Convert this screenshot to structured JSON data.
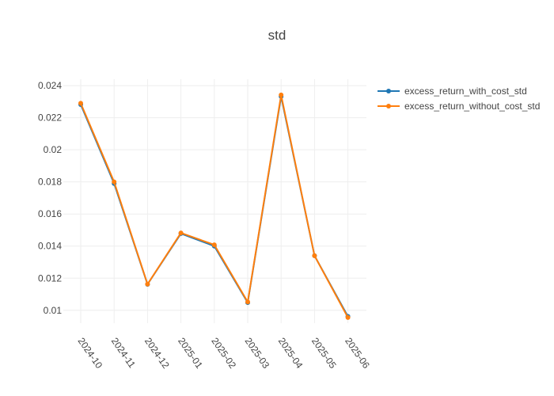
{
  "chart_data": {
    "type": "line",
    "title": "std",
    "xlabel": "",
    "ylabel": "",
    "categories": [
      "2024-10",
      "2024-11",
      "2024-12",
      "2025-01",
      "2025-02",
      "2025-03",
      "2025-04",
      "2025-05",
      "2025-06"
    ],
    "y_ticks": [
      "0.01",
      "0.012",
      "0.014",
      "0.016",
      "0.018",
      "0.02",
      "0.022",
      "0.024"
    ],
    "ylim": [
      0.0092,
      0.0244
    ],
    "grid": true,
    "legend_position": "top-right",
    "series": [
      {
        "name": "excess_return_with_cost_std",
        "color": "#1f77b4",
        "values": [
          0.02282,
          0.0179,
          0.01162,
          0.01478,
          0.014,
          0.01048,
          0.02332,
          0.0134,
          0.00962
        ]
      },
      {
        "name": "excess_return_without_cost_std",
        "color": "#ff7f0e",
        "values": [
          0.0229,
          0.018,
          0.01163,
          0.01482,
          0.01408,
          0.01052,
          0.02342,
          0.0134,
          0.00955
        ]
      }
    ]
  }
}
